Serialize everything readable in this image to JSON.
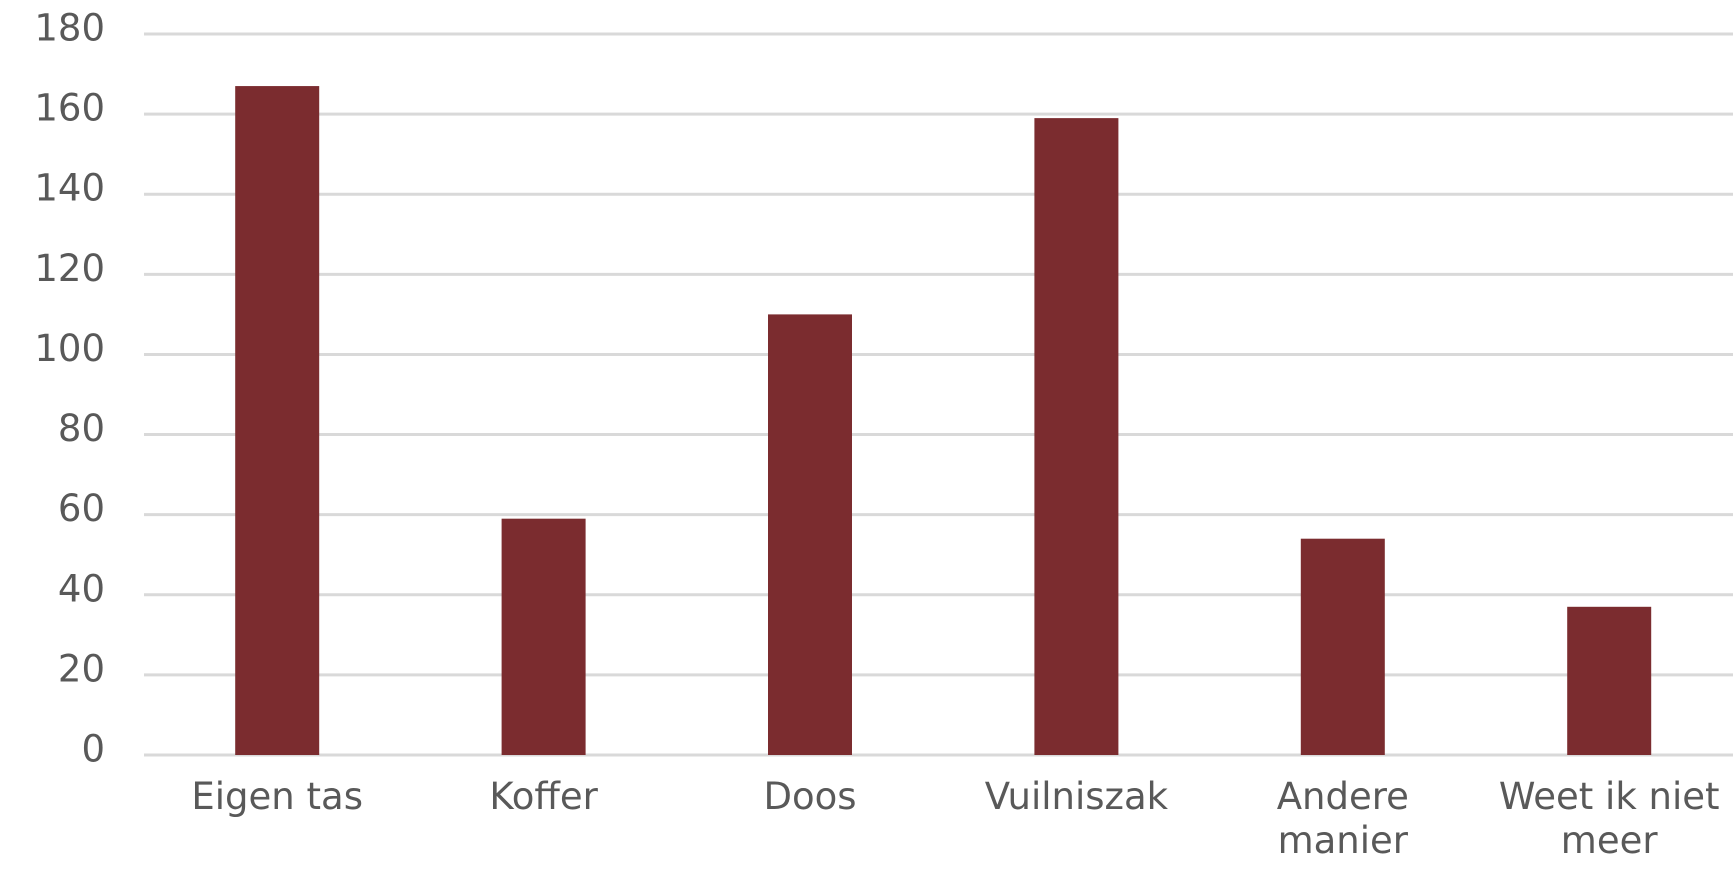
{
  "chart_data": {
    "type": "bar",
    "categories": [
      "Eigen tas",
      "Koffer",
      "Doos",
      "Vuilniszak",
      "Andere manier",
      "Weet ik niet meer"
    ],
    "values": [
      167,
      59,
      110,
      159,
      54,
      37
    ],
    "color": "#7b2c2f",
    "ylim": [
      0,
      180
    ],
    "yticks": [
      0,
      20,
      40,
      60,
      80,
      100,
      120,
      140,
      160,
      180
    ],
    "grid": true
  }
}
